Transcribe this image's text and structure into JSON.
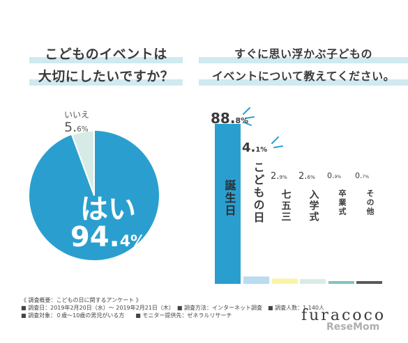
{
  "questions": {
    "left": [
      "こどものイベントは",
      "大切にしたいですか？"
    ],
    "right": [
      "すぐに思い浮かぶ子どもの",
      "イベントについて教えてください。"
    ]
  },
  "chart_data": [
    {
      "type": "pie",
      "labels": [
        "はい",
        "いいえ"
      ],
      "values": [
        94.4,
        5.6
      ],
      "display": {
        "yes_label": "はい",
        "yes_int": "94.",
        "yes_dec": "4%",
        "no_label": "いいえ",
        "no_int": "5.",
        "no_dec": "6%"
      },
      "colors": [
        "#2a9fcf",
        "#d7ebe6"
      ]
    },
    {
      "type": "bar",
      "categories": [
        "誕生日",
        "こどもの日",
        "七五三",
        "入学式",
        "卒業式",
        "その他"
      ],
      "values": [
        88.8,
        4.1,
        2.9,
        2.6,
        0.9,
        0.7
      ],
      "value_labels": [
        {
          "int": "88.",
          "dec": "8%"
        },
        {
          "int": "4.",
          "dec": "1%"
        },
        {
          "int": "2.",
          "dec": "9%"
        },
        {
          "int": "2.",
          "dec": "6%"
        },
        {
          "int": "0.",
          "dec": "9%"
        },
        {
          "int": "0.",
          "dec": "7%"
        }
      ],
      "colors": [
        "#2a9fcf",
        "#b9dcef",
        "#fbf3a6",
        "#d9ebe4",
        "#7fc4c0",
        "#555a5c"
      ]
    }
  ],
  "footer": {
    "line1": "《 調査概要：こどもの日に関するアンケート 》",
    "line2a": "■ 調査日：2019年2月20日（水）～ 2019年2月21日（木）",
    "line2b": "■ 調査方法：インターネット調査",
    "line2c": "■ 調査人数：1,140人",
    "line3a": "■ 調査対象：０歳～10歳の男児がいる方",
    "line3b": "■ モニター提供先：ゼネラルリサーチ"
  },
  "brand": "furacoco",
  "watermark": "ReseMom"
}
